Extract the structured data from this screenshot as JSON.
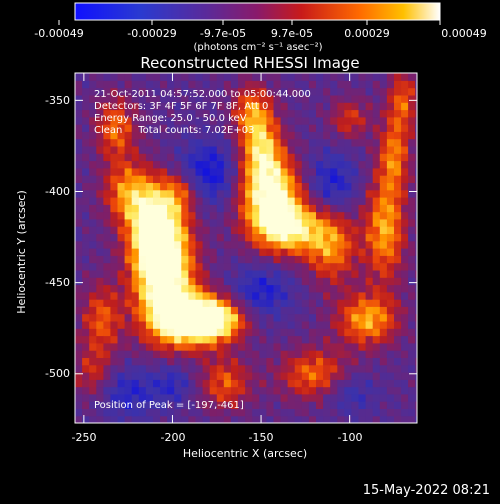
{
  "colorbar": {
    "ticks": [
      "-0.00049",
      "-0.00029",
      "-9.7e-05",
      "9.7e-05",
      "0.00029",
      "0.00049"
    ],
    "unit_label": "(photons cm⁻² s⁻¹ asec⁻²)",
    "range": [
      -0.00049,
      0.00049
    ]
  },
  "chart_data": {
    "type": "heatmap",
    "title": "Reconstructed RHESSI Image",
    "xlabel": "Heliocentric X (arcsec)",
    "ylabel": "Heliocentric Y (arcsec)",
    "xlim": [
      -255,
      -62
    ],
    "ylim": [
      -527,
      -335
    ],
    "x_ticks": [
      -250,
      -200,
      -150,
      -100
    ],
    "y_ticks": [
      -350,
      -400,
      -450,
      -500
    ],
    "annotations": [
      "21-Oct-2011 04:57:52.000 to 05:00:44.000",
      "Detectors: 3F 4F 5F 6F 7F 8F, Att 0",
      "Energy Range: 25.0 - 50.0 keV",
      "Clean     Total counts: 7.02E+03"
    ],
    "peak_label": "Position of Peak = [-197,-461]",
    "peak": [
      -197,
      -461
    ],
    "colormap": "RHESSI blue-purple-red-yellow-white",
    "colors": [
      "#1818f0",
      "#4a2aa0",
      "#8a1e6a",
      "#d23010",
      "#ff8a00",
      "#ffffb0"
    ]
  },
  "footer": {
    "timestamp": "15-May-2022 08:21"
  }
}
